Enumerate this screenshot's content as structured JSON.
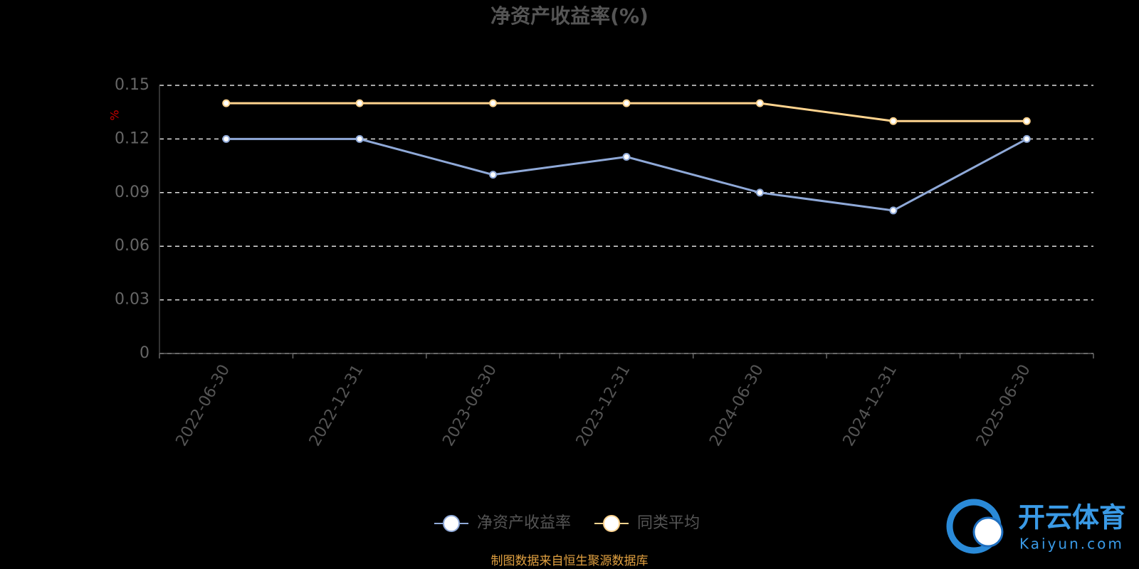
{
  "chart_data": {
    "type": "line",
    "title": "净资产收益率(%)",
    "y_label": "%",
    "categories": [
      "2022-06-30",
      "2022-12-31",
      "2023-06-30",
      "2023-12-31",
      "2024-06-30",
      "2024-12-31",
      "2025-06-30"
    ],
    "series": [
      {
        "name": "净资产收益率",
        "color": "#8fa9d8",
        "values": [
          0.12,
          0.12,
          0.1,
          0.11,
          0.09,
          0.08,
          0.12
        ]
      },
      {
        "name": "同类平均",
        "color": "#ffd48f",
        "values": [
          0.14,
          0.14,
          0.14,
          0.14,
          0.14,
          0.13,
          0.13
        ]
      }
    ],
    "ylim": [
      0,
      0.15
    ],
    "yticks": [
      0,
      0.03,
      0.06,
      0.09,
      0.12,
      0.15
    ],
    "grid": true,
    "legend": "bottom",
    "source": "制图数据来自恒生聚源数据库"
  },
  "watermark": {
    "name": "开云体育",
    "site": "Kaiyun.com"
  }
}
